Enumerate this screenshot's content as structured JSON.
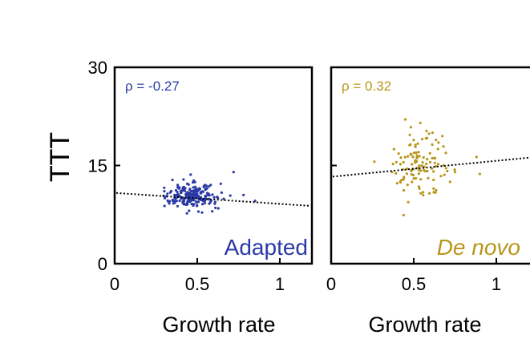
{
  "chart_data": [
    {
      "type": "scatter",
      "panel": "left",
      "title": "",
      "xlabel": "Growth rate",
      "ylabel": "TTT",
      "xlim": [
        0,
        1.2
      ],
      "ylim": [
        0,
        30
      ],
      "xticks": [
        0,
        0.5,
        1
      ],
      "xtick_labels": [
        "0",
        "0.5",
        "1"
      ],
      "yticks": [
        0,
        15,
        30
      ],
      "ytick_labels": [
        "0",
        "15",
        "30"
      ],
      "grid": false,
      "series_label": "Adapted",
      "series_label_italic": false,
      "color": "#2b3aa6",
      "annotation": "ρ = -0.27",
      "trendline": {
        "x": [
          0,
          1.2
        ],
        "y": [
          10.8,
          8.8
        ],
        "style": "dotted"
      },
      "points_count": 230,
      "points_sample": [
        {
          "x": 0.3,
          "y": 11.6
        },
        {
          "x": 0.33,
          "y": 9.2
        },
        {
          "x": 0.35,
          "y": 12.8
        },
        {
          "x": 0.38,
          "y": 10.3
        },
        {
          "x": 0.4,
          "y": 11.1
        },
        {
          "x": 0.42,
          "y": 9.6
        },
        {
          "x": 0.44,
          "y": 12.2
        },
        {
          "x": 0.45,
          "y": 10.0
        },
        {
          "x": 0.46,
          "y": 13.6
        },
        {
          "x": 0.48,
          "y": 9.1
        },
        {
          "x": 0.5,
          "y": 10.6
        },
        {
          "x": 0.52,
          "y": 9.8
        },
        {
          "x": 0.55,
          "y": 11.4
        },
        {
          "x": 0.58,
          "y": 9.4
        },
        {
          "x": 0.62,
          "y": 10.2
        },
        {
          "x": 0.66,
          "y": 9.9
        },
        {
          "x": 0.7,
          "y": 10.4
        },
        {
          "x": 0.72,
          "y": 14.0
        },
        {
          "x": 0.78,
          "y": 10.5
        },
        {
          "x": 0.85,
          "y": 9.6
        }
      ],
      "distribution": {
        "x_mean": 0.46,
        "x_sd": 0.07,
        "y_mean": 10.3,
        "y_sd": 0.9
      }
    },
    {
      "type": "scatter",
      "panel": "right",
      "title": "",
      "xlabel": "Growth rate",
      "ylabel": "",
      "xlim": [
        0,
        1.2
      ],
      "ylim": [
        0,
        30
      ],
      "xticks": [
        0,
        0.5,
        1
      ],
      "xtick_labels": [
        "0",
        "0.5",
        "1"
      ],
      "yticks": [
        0,
        15,
        30
      ],
      "ytick_labels": [
        "",
        "",
        ""
      ],
      "grid": false,
      "series_label": "De novo",
      "series_label_italic": true,
      "color": "#b8961c",
      "annotation": "ρ = 0.32",
      "trendline": {
        "x": [
          0,
          1.2
        ],
        "y": [
          13.3,
          16.2
        ],
        "style": "dotted"
      },
      "points_count": 120,
      "points_sample": [
        {
          "x": 0.38,
          "y": 17.5
        },
        {
          "x": 0.4,
          "y": 12.3
        },
        {
          "x": 0.42,
          "y": 15.2
        },
        {
          "x": 0.44,
          "y": 11.2
        },
        {
          "x": 0.46,
          "y": 14.5
        },
        {
          "x": 0.48,
          "y": 18.2
        },
        {
          "x": 0.5,
          "y": 13.0
        },
        {
          "x": 0.52,
          "y": 16.2
        },
        {
          "x": 0.54,
          "y": 21.5
        },
        {
          "x": 0.56,
          "y": 14.8
        },
        {
          "x": 0.58,
          "y": 19.2
        },
        {
          "x": 0.6,
          "y": 15.5
        },
        {
          "x": 0.62,
          "y": 12.8
        },
        {
          "x": 0.65,
          "y": 18.5
        },
        {
          "x": 0.68,
          "y": 15.0
        },
        {
          "x": 0.72,
          "y": 12.5
        },
        {
          "x": 0.75,
          "y": 14.0
        },
        {
          "x": 0.88,
          "y": 16.3
        },
        {
          "x": 0.9,
          "y": 13.7
        }
      ],
      "distribution": {
        "x_mean": 0.52,
        "x_sd": 0.08,
        "y_mean": 15.3,
        "y_sd": 2.3
      }
    }
  ]
}
